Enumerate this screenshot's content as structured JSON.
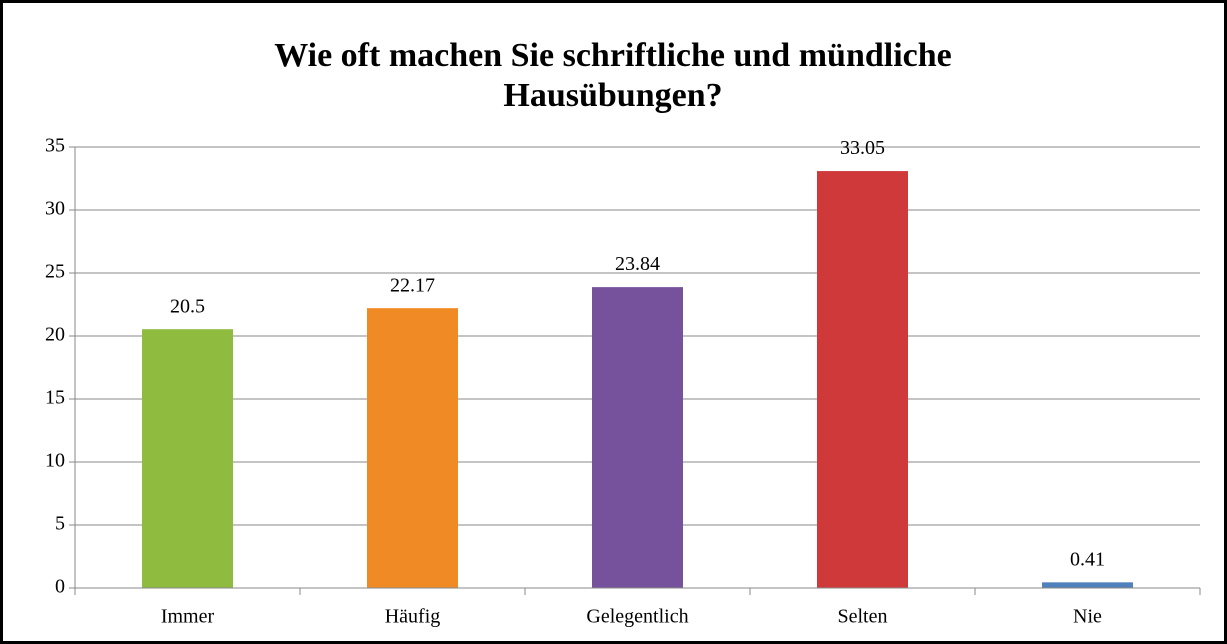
{
  "chart_data": {
    "type": "bar",
    "title": "Wie oft machen Sie schriftliche und mündliche Hausübungen?",
    "categories": [
      "Immer",
      "Häufig",
      "Gelegentlich",
      "Selten",
      "Nie"
    ],
    "values": [
      20.5,
      22.17,
      23.84,
      33.05,
      0.41
    ],
    "colors": [
      "#8fbb3f",
      "#f08a24",
      "#77529c",
      "#d0393a",
      "#4f81bd"
    ],
    "ylim": [
      0,
      35
    ],
    "yticks": [
      0,
      5,
      10,
      15,
      20,
      25,
      30,
      35
    ],
    "grid": true
  }
}
